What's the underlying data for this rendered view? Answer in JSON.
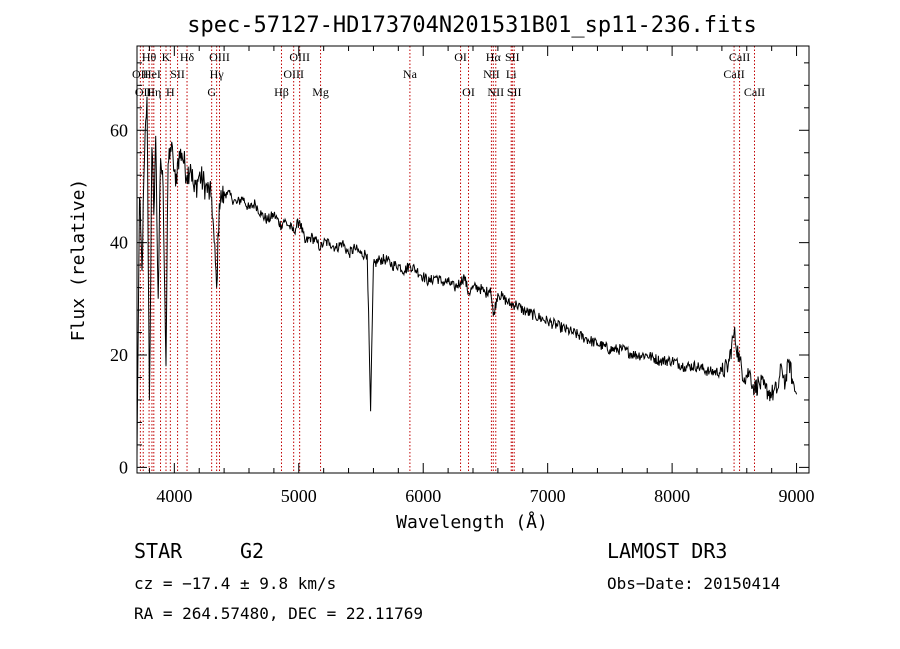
{
  "chart_data": {
    "type": "line",
    "title": "spec-57127-HD173704N201531B01_sp11-236.fits",
    "xlabel": "Wavelength (Å)",
    "ylabel": "Flux (relative)",
    "xlim": [
      3700,
      9100
    ],
    "ylim": [
      -1,
      75
    ],
    "xticks": [
      4000,
      5000,
      6000,
      7000,
      8000,
      9000
    ],
    "yticks": [
      0,
      20,
      40,
      60
    ],
    "series": [
      {
        "name": "spectrum",
        "x": [
          3700,
          3720,
          3740,
          3760,
          3780,
          3800,
          3820,
          3835,
          3850,
          3870,
          3890,
          3910,
          3933,
          3950,
          3968,
          3990,
          4010,
          4030,
          4060,
          4102,
          4130,
          4160,
          4200,
          4250,
          4300,
          4320,
          4340,
          4361,
          4380,
          4420,
          4460,
          4500,
          4550,
          4600,
          4650,
          4700,
          4750,
          4800,
          4861,
          4880,
          4920,
          4960,
          5007,
          5050,
          5100,
          5150,
          5175,
          5200,
          5250,
          5300,
          5350,
          5400,
          5450,
          5500,
          5550,
          5577,
          5600,
          5650,
          5700,
          5750,
          5800,
          5850,
          5893,
          5950,
          6000,
          6050,
          6100,
          6150,
          6200,
          6250,
          6300,
          6330,
          6364,
          6400,
          6450,
          6500,
          6540,
          6563,
          6600,
          6650,
          6700,
          6750,
          6800,
          6900,
          7000,
          7100,
          7200,
          7300,
          7400,
          7500,
          7600,
          7700,
          7800,
          7900,
          8000,
          8100,
          8200,
          8300,
          8400,
          8450,
          8498,
          8542,
          8580,
          8620,
          8662,
          8700,
          8750,
          8800,
          8850,
          8880,
          8910,
          8940,
          8970,
          9000
        ],
        "y": [
          2,
          48,
          35,
          55,
          66,
          12,
          57,
          45,
          59,
          30,
          55,
          50,
          18,
          54,
          57,
          55,
          50,
          55,
          56,
          52,
          54,
          49,
          52,
          50,
          48,
          40,
          32,
          47,
          48,
          49,
          48,
          47,
          48,
          46,
          47,
          45,
          44,
          45,
          43,
          44,
          43,
          42,
          44,
          40,
          41,
          40,
          39,
          40,
          40,
          39,
          40,
          38,
          39,
          38,
          38,
          10,
          36,
          37,
          37,
          36,
          36,
          35,
          36,
          35,
          34,
          33,
          34,
          33,
          33,
          32,
          33,
          34,
          31,
          32,
          32,
          31,
          32,
          27,
          31,
          30,
          29,
          29,
          28,
          27,
          26,
          25,
          24,
          23,
          22,
          21,
          21,
          20,
          20,
          19,
          19,
          18,
          18,
          17,
          17,
          18,
          24,
          19,
          16,
          17,
          14,
          15,
          14,
          13,
          14,
          18,
          15,
          19,
          15,
          13
        ]
      }
    ],
    "lines": [
      {
        "wave": 3727,
        "label": "OII",
        "row": 1
      },
      {
        "wave": 3750,
        "label": "OII",
        "row": 2
      },
      {
        "wave": 3797,
        "label": "Hθ",
        "row": 0
      },
      {
        "wave": 3820,
        "label": "HeI",
        "row": 1
      },
      {
        "wave": 3835,
        "label": "Hη",
        "row": 2
      },
      {
        "wave": 3889,
        "label": "",
        "row": 1
      },
      {
        "wave": 3933,
        "label": "K",
        "row": 0
      },
      {
        "wave": 3968,
        "label": "H",
        "row": 2
      },
      {
        "wave": 4026,
        "label": "SII",
        "row": 1
      },
      {
        "wave": 4102,
        "label": "Hδ",
        "row": 0
      },
      {
        "wave": 4300,
        "label": "G",
        "row": 2
      },
      {
        "wave": 4340,
        "label": "Hγ",
        "row": 1
      },
      {
        "wave": 4363,
        "label": "OIII",
        "row": 0
      },
      {
        "wave": 4861,
        "label": "Hβ",
        "row": 2
      },
      {
        "wave": 4959,
        "label": "OIII",
        "row": 1
      },
      {
        "wave": 5007,
        "label": "OIII",
        "row": 0
      },
      {
        "wave": 5175,
        "label": "Mg",
        "row": 2
      },
      {
        "wave": 5893,
        "label": "Na",
        "row": 1
      },
      {
        "wave": 6300,
        "label": "OI",
        "row": 0
      },
      {
        "wave": 6364,
        "label": "OI",
        "row": 2
      },
      {
        "wave": 6548,
        "label": "NII",
        "row": 1
      },
      {
        "wave": 6563,
        "label": "Hα",
        "row": 0
      },
      {
        "wave": 6583,
        "label": "NII",
        "row": 2
      },
      {
        "wave": 6707,
        "label": "Li",
        "row": 1
      },
      {
        "wave": 6716,
        "label": "SII",
        "row": 0
      },
      {
        "wave": 6731,
        "label": "SII",
        "row": 2
      },
      {
        "wave": 8498,
        "label": "CaII",
        "row": 1
      },
      {
        "wave": 8542,
        "label": "CaII",
        "row": 0
      },
      {
        "wave": 8662,
        "label": "CaII",
        "row": 2
      }
    ]
  },
  "info": {
    "class": "STAR",
    "subclass": "G2",
    "survey": "LAMOST DR3",
    "cz": "cz = −17.4 ± 9.8 km/s",
    "obs_date": "Obs−Date: 20150414",
    "coords": "RA = 264.57480, DEC =  22.11769"
  },
  "colors": {
    "line_marker": "#c00000",
    "spectrum": "#000000"
  }
}
